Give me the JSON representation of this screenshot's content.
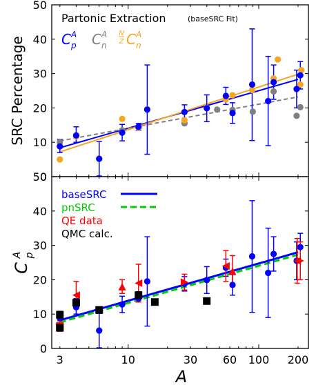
{
  "chart_data": [
    {
      "type": "scatter",
      "panel": "top",
      "title": "Partonic Extraction",
      "title_note": "(baseSRC Fit)",
      "ylabel": "SRC Percentage",
      "xscale": "log",
      "xlim": [
        2.6,
        240
      ],
      "ylim": [
        0,
        50
      ],
      "yticks": [
        0,
        10,
        20,
        30,
        40,
        50
      ],
      "legend": {
        "placement": "top-left",
        "entries": [
          {
            "series": "Cp",
            "base": "C",
            "sub": "p",
            "sup": "A",
            "color": "#0000ff"
          },
          {
            "series": "Cn",
            "base": "C",
            "sub": "n",
            "sup": "A",
            "color": "#808080"
          },
          {
            "series": "NZCn",
            "frac_num": "N",
            "frac_den": "Z",
            "base": "C",
            "sub": "n",
            "sup": "A",
            "color": "#f5a623"
          }
        ]
      },
      "series": [
        {
          "key": "Cp",
          "color": "#0000ff",
          "line": "solid",
          "fit": [
            [
              3,
              8.4
            ],
            [
              200,
              28.3
            ]
          ],
          "points": [
            {
              "x": 3,
              "y": 8.8,
              "lo": 7.0,
              "hi": 10.8
            },
            {
              "x": 4,
              "y": 12.0,
              "lo": 10.0,
              "hi": 14.5
            },
            {
              "x": 6,
              "y": 5.2,
              "lo": 0.2,
              "hi": 10.2
            },
            {
              "x": 9,
              "y": 12.8,
              "lo": 10.4,
              "hi": 15.2
            },
            {
              "x": 12,
              "y": 14.5,
              "lo": 13.5,
              "hi": 15.5
            },
            {
              "x": 14,
              "y": 19.5,
              "lo": 6.5,
              "hi": 32.5
            },
            {
              "x": 27,
              "y": 18.8,
              "lo": 16.7,
              "hi": 20.9
            },
            {
              "x": 40,
              "y": 19.9,
              "lo": 16.0,
              "hi": 23.8
            },
            {
              "x": 56,
              "y": 23.5,
              "lo": 21.0,
              "hi": 26.0
            },
            {
              "x": 63,
              "y": 18.5,
              "lo": 15.5,
              "hi": 21.5
            },
            {
              "x": 89,
              "y": 26.8,
              "lo": 10.5,
              "hi": 43.0
            },
            {
              "x": 118,
              "y": 22.0,
              "lo": 9.0,
              "hi": 35.0
            },
            {
              "x": 130,
              "y": 27.5,
              "lo": 22.5,
              "hi": 32.5
            },
            {
              "x": 195,
              "y": 25.5,
              "lo": 20.0,
              "hi": 31.0
            },
            {
              "x": 208,
              "y": 29.5,
              "lo": 25.5,
              "hi": 33.5
            }
          ]
        },
        {
          "key": "Cn",
          "color": "#808080",
          "line": "dashed",
          "fit": [
            [
              3,
              10.4
            ],
            [
              200,
              23.2
            ]
          ],
          "points": [
            {
              "x": 3,
              "y": 10.0
            },
            {
              "x": 4,
              "y": 11.8
            },
            {
              "x": 9,
              "y": 13.5
            },
            {
              "x": 12,
              "y": 14.2
            },
            {
              "x": 27,
              "y": 15.5
            },
            {
              "x": 48,
              "y": 19.5
            },
            {
              "x": 63,
              "y": 19.4
            },
            {
              "x": 90,
              "y": 18.9
            },
            {
              "x": 130,
              "y": 24.8
            },
            {
              "x": 195,
              "y": 17.7
            },
            {
              "x": 208,
              "y": 20.2
            }
          ]
        },
        {
          "key": "NZCn",
          "color": "#f5a623",
          "line": "solid",
          "fit": [
            [
              3,
              7.2
            ],
            [
              200,
              29.8
            ]
          ],
          "points": [
            {
              "x": 3,
              "y": 5.0
            },
            {
              "x": 4,
              "y": 11.7
            },
            {
              "x": 6,
              "y": 5.2
            },
            {
              "x": 9,
              "y": 16.8
            },
            {
              "x": 12,
              "y": 14.3
            },
            {
              "x": 14,
              "y": 19.6
            },
            {
              "x": 27,
              "y": 16.4
            },
            {
              "x": 40,
              "y": 20.0
            },
            {
              "x": 56,
              "y": 22.5
            },
            {
              "x": 63,
              "y": 23.7
            },
            {
              "x": 89,
              "y": 25.2
            },
            {
              "x": 130,
              "y": 28.6
            },
            {
              "x": 208,
              "y": 26.8
            },
            {
              "x": 140,
              "y": 34.1
            },
            {
              "x": 212,
              "y": 31.0
            }
          ]
        }
      ]
    },
    {
      "type": "scatter",
      "panel": "bottom",
      "xlabel": "A",
      "ylabel_base": "C",
      "ylabel_sub": "p",
      "ylabel_sup": "A",
      "xscale": "log",
      "xlim": [
        2.6,
        240
      ],
      "ylim": [
        0,
        50
      ],
      "yticks": [
        0,
        10,
        20,
        30,
        40,
        50
      ],
      "xticks": [
        3,
        10,
        30,
        60,
        100,
        200
      ],
      "xtick_labels": [
        "3",
        "10",
        "30",
        "60",
        "100",
        "200"
      ],
      "legend": {
        "placement": "top-left",
        "entries": [
          {
            "label": "baseSRC",
            "color": "#0000ff",
            "style": "solid-line"
          },
          {
            "label": "pnSRC",
            "color": "#00cc00",
            "style": "dashed-line"
          },
          {
            "label": "QE data",
            "color": "#ff0000",
            "style": "text"
          },
          {
            "label": "QMC calc.",
            "color": "#000000",
            "style": "text"
          }
        ]
      },
      "lines": [
        {
          "name": "baseSRC",
          "color": "#0000ff",
          "dash": false,
          "points": [
            [
              3,
              8.2
            ],
            [
              200,
              28.0
            ]
          ]
        },
        {
          "name": "pnSRC",
          "color": "#00cc00",
          "dash": true,
          "points": [
            [
              3,
              7.6
            ],
            [
              200,
              27.3
            ]
          ]
        }
      ],
      "baseSRC_points": [
        {
          "x": 3,
          "y": 8.8,
          "lo": 7.0,
          "hi": 10.8
        },
        {
          "x": 4,
          "y": 12.0,
          "lo": 10.0,
          "hi": 14.5
        },
        {
          "x": 6,
          "y": 5.2,
          "lo": 0.2,
          "hi": 10.2
        },
        {
          "x": 9,
          "y": 12.8,
          "lo": 10.4,
          "hi": 15.2
        },
        {
          "x": 12,
          "y": 14.5,
          "lo": 13.5,
          "hi": 15.5
        },
        {
          "x": 14,
          "y": 19.5,
          "lo": 6.5,
          "hi": 32.5
        },
        {
          "x": 27,
          "y": 18.8,
          "lo": 16.7,
          "hi": 20.9
        },
        {
          "x": 40,
          "y": 19.9,
          "lo": 16.0,
          "hi": 23.8
        },
        {
          "x": 56,
          "y": 23.5,
          "lo": 21.0,
          "hi": 26.0
        },
        {
          "x": 63,
          "y": 18.5,
          "lo": 15.5,
          "hi": 21.5
        },
        {
          "x": 89,
          "y": 26.8,
          "lo": 10.5,
          "hi": 43.0
        },
        {
          "x": 118,
          "y": 22.0,
          "lo": 9.0,
          "hi": 35.0
        },
        {
          "x": 130,
          "y": 27.5,
          "lo": 22.5,
          "hi": 32.5
        },
        {
          "x": 195,
          "y": 25.5,
          "lo": 20.0,
          "hi": 31.0
        },
        {
          "x": 208,
          "y": 29.5,
          "lo": 25.5,
          "hi": 33.5
        }
      ],
      "qe_points": [
        {
          "x": 3,
          "y": 6.5,
          "lo": 5.0,
          "hi": 8.0,
          "shape": "square"
        },
        {
          "x": 4,
          "y": 15.5,
          "lo": 11.5,
          "hi": 19.5,
          "shape": "tri-left"
        },
        {
          "x": 9,
          "y": 18.0,
          "lo": 16.0,
          "hi": 20.0,
          "shape": "tri-up"
        },
        {
          "x": 12,
          "y": 19.0,
          "lo": 13.5,
          "hi": 24.5,
          "shape": "tri-left"
        },
        {
          "x": 27,
          "y": 19.3,
          "lo": 17.0,
          "hi": 21.6,
          "shape": "tri-right"
        },
        {
          "x": 56,
          "y": 24.0,
          "lo": 19.5,
          "hi": 28.5,
          "shape": "tri-left"
        },
        {
          "x": 63,
          "y": 22.5,
          "lo": 18.0,
          "hi": 27.0,
          "shape": "tri-up"
        },
        {
          "x": 197,
          "y": 25.5,
          "lo": 19.0,
          "hi": 32.0,
          "shape": "tri-left"
        },
        {
          "x": 208,
          "y": 25.5,
          "lo": 20.0,
          "hi": 31.0,
          "shape": "tri-right"
        }
      ],
      "qmc_points": [
        {
          "x": 3,
          "y": 9.8,
          "lo": 8.8,
          "hi": 10.8
        },
        {
          "x": 3,
          "y": 6.0,
          "lo": 5.5,
          "hi": 6.5
        },
        {
          "x": 4,
          "y": 13.3,
          "lo": 12.5,
          "hi": 14.1
        },
        {
          "x": 6,
          "y": 11.2,
          "lo": 10.4,
          "hi": 12.0
        },
        {
          "x": 12,
          "y": 15.5,
          "lo": 14.5,
          "hi": 16.5
        },
        {
          "x": 16,
          "y": 13.5,
          "lo": 12.8,
          "hi": 14.2
        },
        {
          "x": 40,
          "y": 13.8,
          "lo": 13.0,
          "hi": 14.6
        }
      ]
    }
  ]
}
